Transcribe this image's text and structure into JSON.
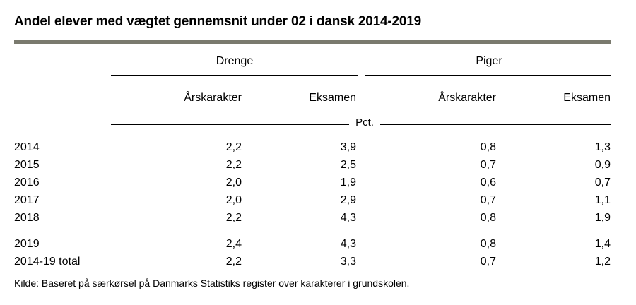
{
  "title": "Andel elever med vægtet gennemsnit under 02 i dansk 2014-2019",
  "groups": [
    {
      "label": "Drenge"
    },
    {
      "label": "Piger"
    }
  ],
  "columns": [
    "Årskarakter",
    "Eksamen",
    "Årskarakter",
    "Eksamen"
  ],
  "unit": "Pct.",
  "rows": [
    {
      "year": "2014",
      "values": [
        "2,2",
        "3,9",
        "0,8",
        "1,3"
      ]
    },
    {
      "year": "2015",
      "values": [
        "2,2",
        "2,5",
        "0,7",
        "0,9"
      ]
    },
    {
      "year": "2016",
      "values": [
        "2,0",
        "1,9",
        "0,6",
        "0,7"
      ]
    },
    {
      "year": "2017",
      "values": [
        "2,0",
        "2,9",
        "0,7",
        "1,1"
      ]
    },
    {
      "year": "2018",
      "values": [
        "2,2",
        "4,3",
        "0,8",
        "1,9"
      ]
    },
    {
      "year": "2019",
      "values": [
        "2,4",
        "4,3",
        "0,8",
        "1,4"
      ]
    },
    {
      "year": "2014-19 total",
      "values": [
        "2,2",
        "3,3",
        "0,7",
        "1,2"
      ]
    }
  ],
  "source": "Kilde: Baseret på særkørsel på Danmarks Statistiks register over karakterer i grundskolen.",
  "colors": {
    "title_rule": "#7a7a6e",
    "text": "#000000"
  }
}
